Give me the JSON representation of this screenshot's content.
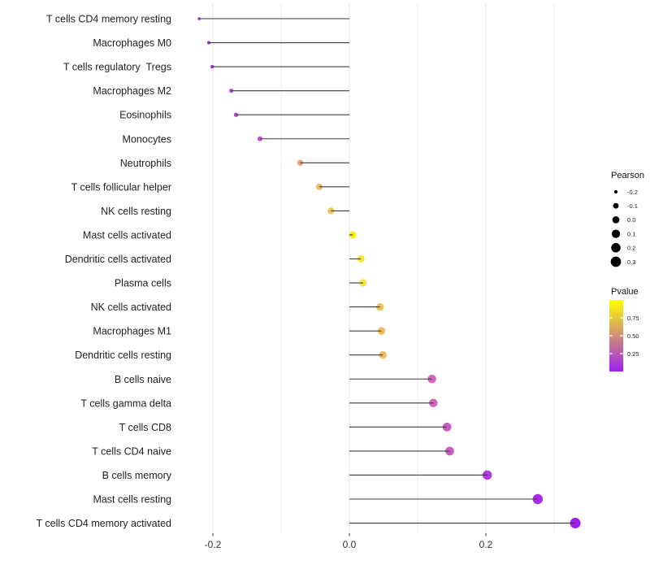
{
  "chart_data": {
    "type": "lollipop",
    "title": "",
    "xlabel": "",
    "ylabel": "",
    "xlim": [
      -0.253,
      0.359
    ],
    "grid": "vertical-only",
    "x_major_ticks": [
      -0.2,
      0.0,
      0.2
    ],
    "x_major_tick_labels": [
      "-0.2",
      "0.0",
      "0.2"
    ],
    "x_minor_gridlines": [
      -0.1,
      0.1,
      0.3
    ],
    "baseline_x": 0.0,
    "rows": [
      {
        "label": "T cells CD4 memory resting",
        "pearson": -0.22,
        "dot_color": "#8F2BD1"
      },
      {
        "label": "Macrophages M0",
        "pearson": -0.206,
        "dot_color": "#9C33CF"
      },
      {
        "label": "T cells regulatory  Tregs",
        "pearson": -0.201,
        "dot_color": "#9A31CC"
      },
      {
        "label": "Macrophages M2",
        "pearson": -0.173,
        "dot_color": "#B446CF"
      },
      {
        "label": "Eosinophils",
        "pearson": -0.166,
        "dot_color": "#B244CC"
      },
      {
        "label": "Monocytes",
        "pearson": -0.131,
        "dot_color": "#C157CE"
      },
      {
        "label": "Neutrophils",
        "pearson": -0.072,
        "dot_color": "#E9A183"
      },
      {
        "label": "T cells follicular helper",
        "pearson": -0.044,
        "dot_color": "#ECBB64"
      },
      {
        "label": "NK cells resting",
        "pearson": -0.027,
        "dot_color": "#EFC55A"
      },
      {
        "label": "Mast cells activated",
        "pearson": 0.005,
        "dot_color": "#FAF20D"
      },
      {
        "label": "Dendritic cells activated",
        "pearson": 0.017,
        "dot_color": "#F6E93A"
      },
      {
        "label": "Plasma cells",
        "pearson": 0.02,
        "dot_color": "#F5E443"
      },
      {
        "label": "NK cells activated",
        "pearson": 0.045,
        "dot_color": "#EEC15A"
      },
      {
        "label": "Macrophages M1",
        "pearson": 0.047,
        "dot_color": "#EDBF5C"
      },
      {
        "label": "Dendritic cells resting",
        "pearson": 0.049,
        "dot_color": "#ECBD5F"
      },
      {
        "label": "B cells naive",
        "pearson": 0.121,
        "dot_color": "#CD66BC"
      },
      {
        "label": "T cells gamma delta",
        "pearson": 0.123,
        "dot_color": "#CD65BD"
      },
      {
        "label": "T cells CD8",
        "pearson": 0.143,
        "dot_color": "#C85CC7"
      },
      {
        "label": "T cells CD4 naive",
        "pearson": 0.147,
        "dot_color": "#C75DC5"
      },
      {
        "label": "B cells memory",
        "pearson": 0.202,
        "dot_color": "#B13BE0"
      },
      {
        "label": "Mast cells resting",
        "pearson": 0.276,
        "dot_color": "#A92BE7"
      },
      {
        "label": "T cells CD4 memory activated",
        "pearson": 0.331,
        "dot_color": "#A21FEB"
      }
    ]
  },
  "legend_size": {
    "title": "Pearson",
    "dot_color": "#000000",
    "entries": [
      {
        "label": "-0.2",
        "value": -0.2
      },
      {
        "label": "-0.1",
        "value": -0.1
      },
      {
        "label": "0.0",
        "value": 0.0
      },
      {
        "label": "0.1",
        "value": 0.1
      },
      {
        "label": "0.2",
        "value": 0.2
      },
      {
        "label": "0.3",
        "value": 0.3
      }
    ]
  },
  "legend_color": {
    "title": "Pvalue",
    "gradient_low_color": "#A020F0",
    "gradient_high_color": "#FFFF00",
    "range": [
      0,
      1
    ],
    "ticks": [
      {
        "label": "0.75",
        "value": 0.75
      },
      {
        "label": "0.50",
        "value": 0.5
      },
      {
        "label": "0.25",
        "value": 0.25
      }
    ]
  },
  "colors": {
    "stem": "#3D3D3D",
    "grid_major": "#E4E4E4",
    "grid_minor": "#F2F2F2",
    "axis_tick": "#333333",
    "background": "#FFFFFF"
  }
}
